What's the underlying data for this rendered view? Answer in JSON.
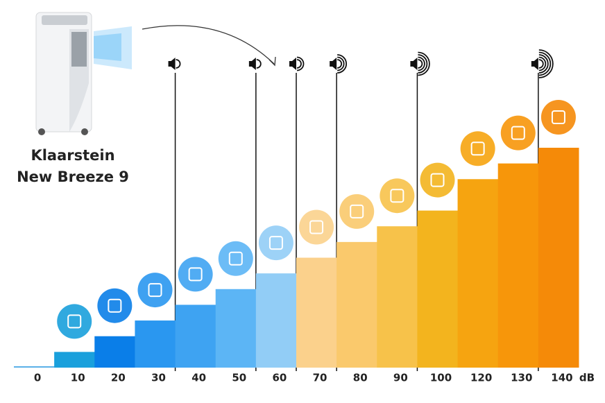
{
  "chart_data": {
    "type": "bar",
    "annotations": [
      "Klaarstein",
      "New Breeze 9"
    ],
    "x_label": "dB",
    "categories": [
      "0",
      "10",
      "20",
      "30",
      "40",
      "50",
      "60",
      "70",
      "80",
      "90",
      "100",
      "120",
      "130",
      "140"
    ],
    "values": [
      0,
      10,
      20,
      30,
      40,
      50,
      60,
      70,
      80,
      90,
      100,
      120,
      130,
      140
    ],
    "colors": [
      "#5ab0e8",
      "#1aa0dc",
      "#0a7ee8",
      "#2a97f0",
      "#3ea3f2",
      "#5cb5f5",
      "#92cdf6",
      "#fbd18c",
      "#fac96c",
      "#f7c24a",
      "#f3b41e",
      "#f6a410",
      "#f7960a",
      "#f58a08"
    ],
    "ylim": [
      0,
      140
    ]
  }
}
